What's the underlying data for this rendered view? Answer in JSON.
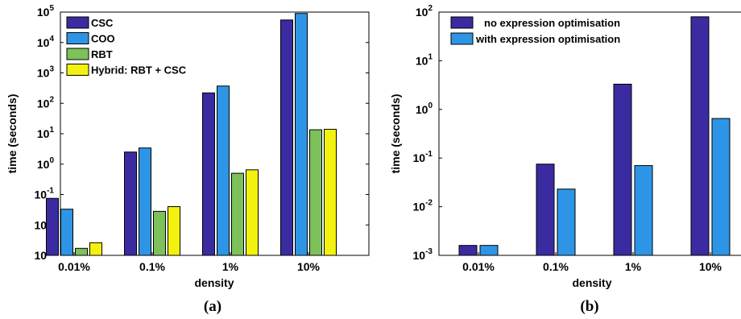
{
  "colors": {
    "CSC": "#3a2ba1",
    "COO": "#2e95e6",
    "RBT": "#7cc15a",
    "Hybrid": "#f3f20e",
    "no_opt": "#3a2ba1",
    "with_opt": "#2e95e6"
  },
  "chart_data": [
    {
      "type": "bar",
      "caption": "(a)",
      "xlabel": "density",
      "ylabel": "time (seconds)",
      "yscale": "log",
      "ylim": [
        0.001,
        100000
      ],
      "yticks": [
        {
          "base": "10",
          "exp": "-3"
        },
        {
          "base": "10",
          "exp": "-2"
        },
        {
          "base": "10",
          "exp": "-1"
        },
        {
          "base": "10",
          "exp": "0"
        },
        {
          "base": "10",
          "exp": "1"
        },
        {
          "base": "10",
          "exp": "2"
        },
        {
          "base": "10",
          "exp": "3"
        },
        {
          "base": "10",
          "exp": "4"
        },
        {
          "base": "10",
          "exp": "5"
        }
      ],
      "categories": [
        "0.01%",
        "0.1%",
        "1%",
        "10%"
      ],
      "legend_position": "top-left",
      "series": [
        {
          "name": "CSC",
          "color_key": "CSC",
          "values": [
            0.075,
            2.5,
            220,
            55000
          ]
        },
        {
          "name": "COO",
          "color_key": "COO",
          "values": [
            0.033,
            3.4,
            370,
            90000
          ]
        },
        {
          "name": "RBT",
          "color_key": "RBT",
          "values": [
            0.0017,
            0.028,
            0.5,
            13.5
          ]
        },
        {
          "name": "Hybrid: RBT + CSC",
          "color_key": "Hybrid",
          "values": [
            0.0026,
            0.04,
            0.65,
            14
          ]
        }
      ]
    },
    {
      "type": "bar",
      "caption": "(b)",
      "xlabel": "density",
      "ylabel": "time (seconds)",
      "yscale": "log",
      "ylim": [
        0.001,
        100
      ],
      "yticks": [
        {
          "base": "10",
          "exp": "-3"
        },
        {
          "base": "10",
          "exp": "-2"
        },
        {
          "base": "10",
          "exp": "-1"
        },
        {
          "base": "10",
          "exp": "0"
        },
        {
          "base": "10",
          "exp": "1"
        },
        {
          "base": "10",
          "exp": "2"
        }
      ],
      "categories": [
        "0.01%",
        "0.1%",
        "1%",
        "10%"
      ],
      "legend_position": "top-left",
      "series": [
        {
          "name": "no expression optimisation",
          "color_key": "no_opt",
          "values": [
            0.0016,
            0.075,
            3.3,
            80
          ]
        },
        {
          "name": "with expression optimisation",
          "color_key": "with_opt",
          "values": [
            0.0016,
            0.023,
            0.07,
            0.65
          ]
        }
      ]
    }
  ]
}
